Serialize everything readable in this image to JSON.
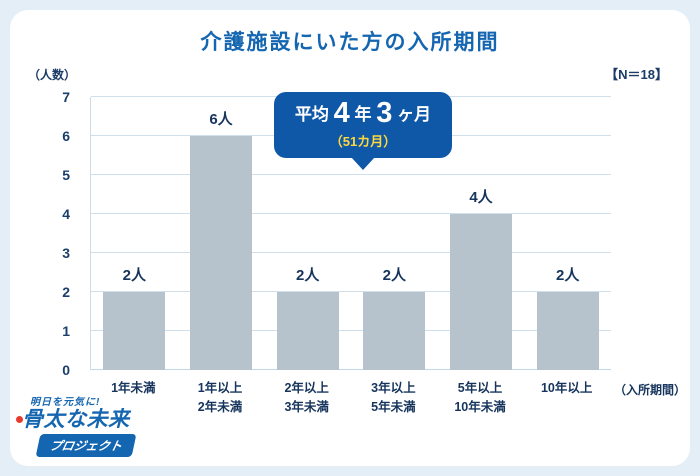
{
  "page": {
    "title": "介護施設にいた方の入所期間",
    "n_label": "【N＝18】",
    "y_axis_unit": "（人数）",
    "x_axis_unit": "（入所期間）"
  },
  "callout": {
    "prefix": "平均",
    "num1": "4",
    "unit1": "年",
    "num2": "3",
    "unit2": "ヶ月",
    "sub": "（51カ月）"
  },
  "logo": {
    "tagline": "明日を元気に!",
    "line1": "骨太な未来",
    "line2": "プロジェクト"
  },
  "chart_data": {
    "type": "bar",
    "title": "介護施設にいた方の入所期間",
    "categories": [
      "1年未満",
      "1年以上\n2年未満",
      "2年以上\n3年未満",
      "3年以上\n5年未満",
      "5年以上\n10年未満",
      "10年以上"
    ],
    "values": [
      2,
      6,
      2,
      2,
      4,
      2
    ],
    "value_labels": [
      "2人",
      "6人",
      "2人",
      "2人",
      "4人",
      "2人"
    ],
    "ylabel": "（人数）",
    "xlabel": "（入所期間）",
    "ylim": [
      0,
      7
    ],
    "yticks": [
      0,
      1,
      2,
      3,
      4,
      5,
      6,
      7
    ],
    "grid": true,
    "legend": false,
    "bar_color": "#b6c3cd",
    "annotation": "平均4年3ヶ月（51カ月）",
    "sample_size": 18
  }
}
